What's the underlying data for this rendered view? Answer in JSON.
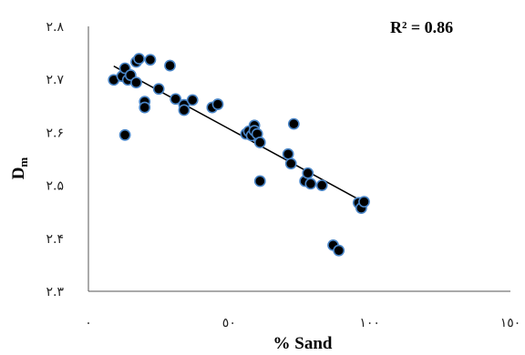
{
  "chart_data": {
    "type": "scatter",
    "title": "",
    "xlabel": "% Sand",
    "ylabel_main": "D",
    "ylabel_sub": "m",
    "annotation": "R² = 0.86",
    "xlim": [
      0,
      150
    ],
    "ylim": [
      2.3,
      2.8
    ],
    "x_ticks": [
      {
        "value": 0,
        "label": "٠"
      },
      {
        "value": 50,
        "label": "٥٠"
      },
      {
        "value": 100,
        "label": "١٠٠"
      },
      {
        "value": 150,
        "label": "١٥٠"
      }
    ],
    "y_ticks": [
      {
        "value": 2.3,
        "label": "٢.٣"
      },
      {
        "value": 2.4,
        "label": "٢.۴"
      },
      {
        "value": 2.5,
        "label": "٢.۵"
      },
      {
        "value": 2.6,
        "label": "٢.۶"
      },
      {
        "value": 2.7,
        "label": "٢.٧"
      },
      {
        "value": 2.8,
        "label": "٢.٨"
      }
    ],
    "grid": false,
    "legend": "none",
    "colors": {
      "marker_fill": "#000000",
      "marker_edge": "#4a86c8",
      "trendline": "#000000"
    },
    "trendline": {
      "x": [
        9,
        99
      ],
      "y": [
        2.725,
        2.465
      ]
    },
    "points": [
      {
        "x": 9,
        "y": 2.699
      },
      {
        "x": 12,
        "y": 2.706
      },
      {
        "x": 13,
        "y": 2.721
      },
      {
        "x": 13,
        "y": 2.595
      },
      {
        "x": 14,
        "y": 2.699
      },
      {
        "x": 15,
        "y": 2.708
      },
      {
        "x": 17,
        "y": 2.733
      },
      {
        "x": 17,
        "y": 2.694
      },
      {
        "x": 18,
        "y": 2.739
      },
      {
        "x": 20,
        "y": 2.658
      },
      {
        "x": 20,
        "y": 2.647
      },
      {
        "x": 22,
        "y": 2.737
      },
      {
        "x": 25,
        "y": 2.682
      },
      {
        "x": 29,
        "y": 2.726
      },
      {
        "x": 31,
        "y": 2.663
      },
      {
        "x": 34,
        "y": 2.652
      },
      {
        "x": 34,
        "y": 2.642
      },
      {
        "x": 37,
        "y": 2.661
      },
      {
        "x": 44,
        "y": 2.647
      },
      {
        "x": 46,
        "y": 2.653
      },
      {
        "x": 56,
        "y": 2.597
      },
      {
        "x": 57,
        "y": 2.602
      },
      {
        "x": 58,
        "y": 2.594
      },
      {
        "x": 59,
        "y": 2.613
      },
      {
        "x": 59,
        "y": 2.603
      },
      {
        "x": 60,
        "y": 2.597
      },
      {
        "x": 61,
        "y": 2.508
      },
      {
        "x": 61,
        "y": 2.581
      },
      {
        "x": 71,
        "y": 2.559
      },
      {
        "x": 72,
        "y": 2.541
      },
      {
        "x": 73,
        "y": 2.616
      },
      {
        "x": 77,
        "y": 2.508
      },
      {
        "x": 78,
        "y": 2.523
      },
      {
        "x": 79,
        "y": 2.503
      },
      {
        "x": 83,
        "y": 2.5
      },
      {
        "x": 87,
        "y": 2.387
      },
      {
        "x": 89,
        "y": 2.377
      },
      {
        "x": 96,
        "y": 2.467
      },
      {
        "x": 97,
        "y": 2.457
      },
      {
        "x": 98,
        "y": 2.469
      }
    ]
  }
}
